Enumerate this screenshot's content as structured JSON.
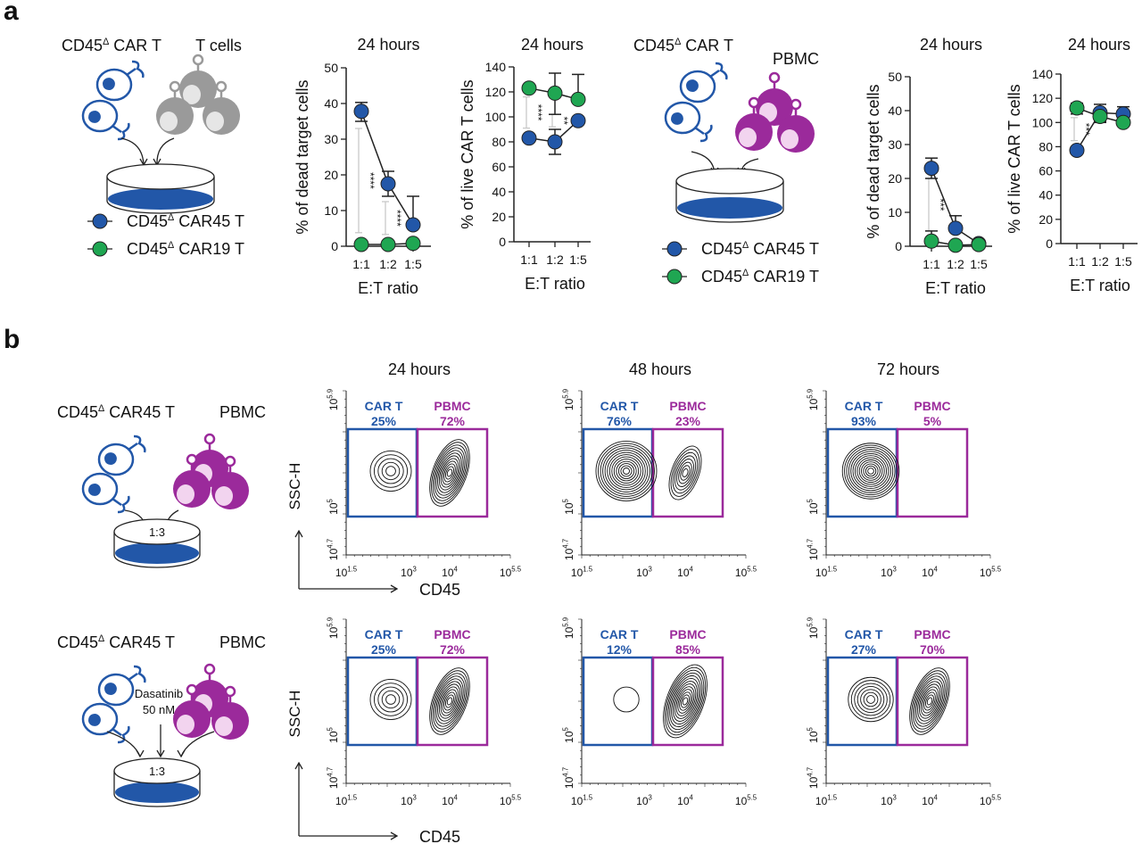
{
  "panel_labels": {
    "a": "a",
    "b": "b"
  },
  "colors": {
    "car45": "#2257a8",
    "car19": "#1fa652",
    "pbmc": "#9b2a9b",
    "tcell": "#9a9a9a",
    "sig": "#c8c8c8"
  },
  "panel_a": {
    "schematic1": {
      "effector": "CD45Δ CAR T",
      "target": "T cells"
    },
    "schematic2": {
      "effector": "CD45Δ CAR T",
      "target": "PBMC"
    },
    "legend": [
      {
        "label": "CD45Δ CAR45 T",
        "color": "#2257a8"
      },
      {
        "label": "CD45Δ CAR19 T",
        "color": "#1fa652"
      }
    ]
  },
  "chart_data": [
    {
      "type": "line",
      "title": "24 hours",
      "xlabel": "E:T ratio",
      "ylabel": "% of dead target cells",
      "categories": [
        "1:1",
        "1:2",
        "1:5"
      ],
      "ylim": [
        0,
        50
      ],
      "yticks": [
        0,
        10,
        20,
        30,
        40,
        50
      ],
      "series": [
        {
          "name": "CD45Δ CAR45 T",
          "values": [
            37.8,
            17.5,
            6
          ],
          "err_low": [
            35,
            14,
            6
          ],
          "err_high": [
            40.3,
            21,
            14
          ]
        },
        {
          "name": "CD45Δ CAR19 T",
          "values": [
            0.5,
            0.5,
            0.8
          ],
          "err_low": [
            0.5,
            0.5,
            0.8
          ],
          "err_high": [
            0.5,
            0.5,
            0.8
          ]
        }
      ],
      "significance": [
        {
          "category": "1:1",
          "range": [
            3.8,
            33
          ],
          "label": "****"
        },
        {
          "category": "1:2",
          "range": [
            3.3,
            12.5
          ],
          "label": "****"
        }
      ]
    },
    {
      "type": "line",
      "title": "24 hours",
      "xlabel": "E:T ratio",
      "ylabel": "% of live CAR T cells",
      "categories": [
        "1:1",
        "1:2",
        "1:5"
      ],
      "ylim": [
        0,
        140
      ],
      "yticks": [
        0,
        20,
        40,
        60,
        80,
        100,
        120,
        140
      ],
      "series": [
        {
          "name": "CD45Δ CAR45 T",
          "values": [
            83,
            80,
            97
          ],
          "err_low": [
            83,
            70,
            97
          ],
          "err_high": [
            83,
            90,
            97
          ]
        },
        {
          "name": "CD45Δ CAR19 T",
          "values": [
            123,
            119,
            114
          ],
          "err_low": [
            123,
            102,
            114
          ],
          "err_high": [
            123,
            135,
            134
          ]
        }
      ],
      "significance": [
        {
          "category": "1:1",
          "range": [
            91,
            116
          ],
          "label": "****"
        },
        {
          "category": "1:2",
          "range": [
            92,
            102
          ],
          "label": "**"
        }
      ]
    },
    {
      "type": "line",
      "title": "24 hours",
      "xlabel": "E:T ratio",
      "ylabel": "% of dead target cells",
      "categories": [
        "1:1",
        "1:2",
        "1:5"
      ],
      "ylim": [
        0,
        50
      ],
      "yticks": [
        0,
        10,
        20,
        30,
        40,
        50
      ],
      "series": [
        {
          "name": "CD45Δ CAR45 T",
          "values": [
            23,
            5.3,
            0.8
          ],
          "err_low": [
            20,
            5.3,
            0.8
          ],
          "err_high": [
            26,
            9,
            0.8
          ]
        },
        {
          "name": "CD45Δ CAR19 T",
          "values": [
            1.5,
            0.3,
            0.5
          ],
          "err_low": [
            1.5,
            0.3,
            0.5
          ],
          "err_high": [
            4.5,
            1.2,
            0.5
          ]
        }
      ],
      "significance": [
        {
          "category": "1:1",
          "range": [
            4.5,
            20
          ],
          "label": "***"
        }
      ]
    },
    {
      "type": "line",
      "title": "24 hours",
      "xlabel": "E:T ratio",
      "ylabel": "% of live CAR T cells",
      "categories": [
        "1:1",
        "1:2",
        "1:5"
      ],
      "ylim": [
        0,
        140
      ],
      "yticks": [
        0,
        20,
        40,
        60,
        80,
        100,
        120,
        140
      ],
      "series": [
        {
          "name": "CD45Δ CAR45 T",
          "values": [
            77,
            108,
            107
          ],
          "err_low": [
            77,
            101,
            107
          ],
          "err_high": [
            77,
            115,
            113
          ]
        },
        {
          "name": "CD45Δ CAR19 T",
          "values": [
            112,
            105,
            100
          ],
          "err_low": [
            107,
            100,
            100
          ],
          "err_high": [
            116,
            105,
            100
          ]
        }
      ],
      "significance": [
        {
          "category": "1:1",
          "range": [
            85,
            104
          ],
          "label": "***"
        }
      ]
    }
  ],
  "panel_b": {
    "rows": [
      {
        "effector": "CD45Δ CAR45 T",
        "target": "PBMC",
        "ratio": "1:3",
        "drug": "",
        "dose": ""
      },
      {
        "effector": "CD45Δ CAR45 T",
        "target": "PBMC",
        "ratio": "1:3",
        "drug": "Dasatinib",
        "dose": "50 nM"
      }
    ],
    "timepoints": [
      "24 hours",
      "48 hours",
      "72 hours"
    ],
    "gate_labels": {
      "cart": "CAR T",
      "pbmc": "PBMC"
    },
    "axes": {
      "x": "CD45",
      "y": "SSC-H"
    },
    "x_ticks": [
      {
        "base": "10",
        "exp": "1.5"
      },
      {
        "base": "10",
        "exp": "3"
      },
      {
        "base": "10",
        "exp": "4"
      },
      {
        "base": "10",
        "exp": "5.5"
      }
    ],
    "y_ticks": [
      {
        "base": "10",
        "exp": "5.9"
      },
      {
        "base": "10",
        "exp": "5"
      },
      {
        "base": "10",
        "exp": "4.7"
      }
    ],
    "percentages": [
      [
        {
          "cart": "25%",
          "pbmc": "72%"
        },
        {
          "cart": "76%",
          "pbmc": "23%"
        },
        {
          "cart": "93%",
          "pbmc": "5%"
        }
      ],
      [
        {
          "cart": "25%",
          "pbmc": "72%"
        },
        {
          "cart": "12%",
          "pbmc": "85%"
        },
        {
          "cart": "27%",
          "pbmc": "70%"
        }
      ]
    ]
  }
}
